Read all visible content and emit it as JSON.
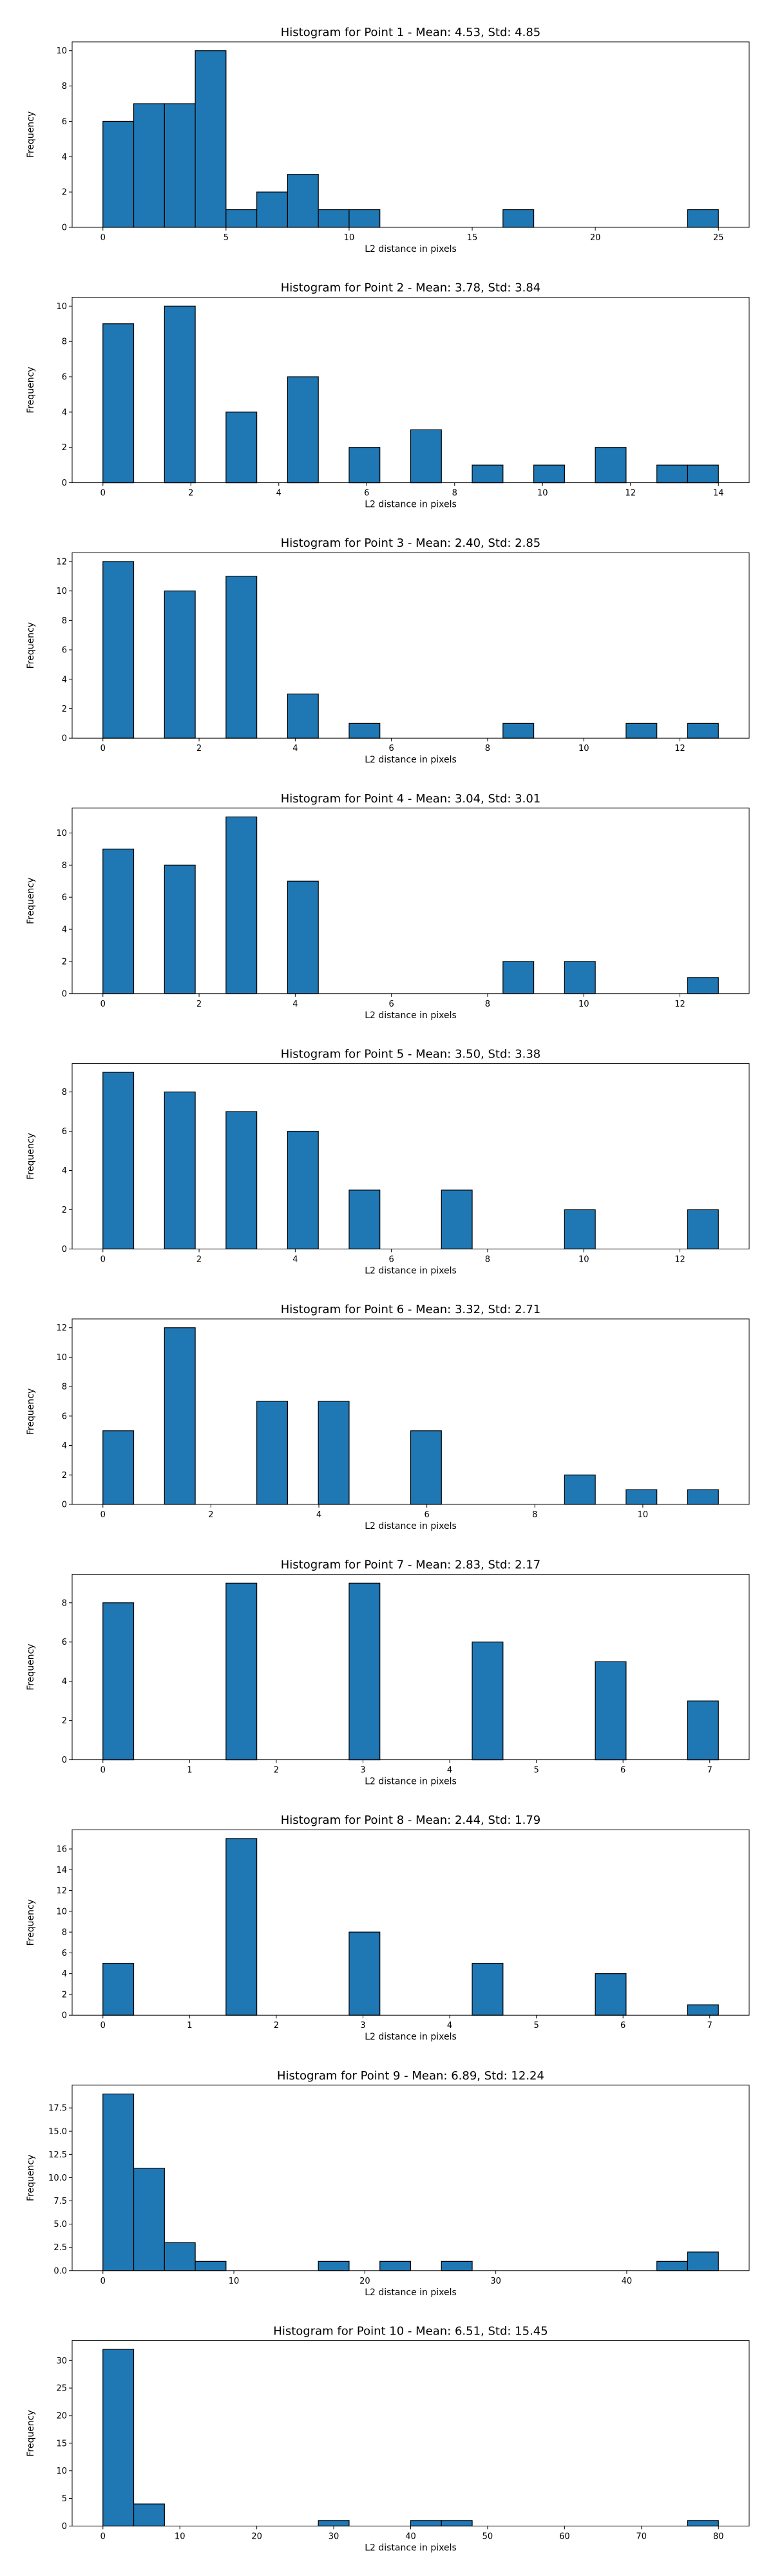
{
  "figure": {
    "background": "#ffffff",
    "bar_color": "#1f77b4",
    "edge_color": "#000000"
  },
  "chart_data": [
    {
      "type": "bar",
      "title": "Histogram for Point 1 - Mean: 4.53, Std: 4.85",
      "xlabel": "L2 distance in pixels",
      "ylabel": "Frequency",
      "xlim": [
        -1.25,
        26.25
      ],
      "ylim": [
        0,
        10.5
      ],
      "xticks": [
        0,
        5,
        10,
        15,
        20,
        25
      ],
      "xtick_labels": [
        "0",
        "5",
        "10",
        "15",
        "20",
        "25"
      ],
      "yticks": [
        0,
        2,
        4,
        6,
        8,
        10
      ],
      "ytick_labels": [
        "0",
        "2",
        "4",
        "6",
        "8",
        "10"
      ],
      "bin_edges": [
        0.0,
        1.25,
        2.5,
        3.75,
        5.0,
        6.25,
        7.5,
        8.75,
        10.0,
        11.25,
        12.5,
        13.75,
        15.0,
        16.25,
        17.5,
        18.75,
        20.0,
        21.25,
        22.5,
        23.75,
        25.0
      ],
      "values": [
        6,
        7,
        7,
        10,
        1,
        2,
        3,
        1,
        1,
        0,
        0,
        0,
        0,
        1,
        0,
        0,
        0,
        0,
        0,
        1
      ]
    },
    {
      "type": "bar",
      "title": "Histogram for Point 2 - Mean: 3.78, Std: 3.84",
      "xlabel": "L2 distance in pixels",
      "ylabel": "Frequency",
      "xlim": [
        -0.7,
        14.7
      ],
      "ylim": [
        0,
        10.5
      ],
      "xticks": [
        0,
        2,
        4,
        6,
        8,
        10,
        12,
        14
      ],
      "xtick_labels": [
        "0",
        "2",
        "4",
        "6",
        "8",
        "10",
        "12",
        "14"
      ],
      "yticks": [
        0,
        2,
        4,
        6,
        8,
        10
      ],
      "ytick_labels": [
        "0",
        "2",
        "4",
        "6",
        "8",
        "10"
      ],
      "bin_edges": [
        0.0,
        0.7,
        1.4,
        2.1,
        2.8,
        3.5,
        4.2,
        4.9,
        5.6,
        6.3,
        7.0,
        7.7,
        8.4,
        9.1,
        9.8,
        10.5,
        11.2,
        11.9,
        12.6,
        13.3,
        14.0
      ],
      "values": [
        9,
        0,
        10,
        0,
        4,
        0,
        6,
        0,
        2,
        0,
        3,
        0,
        1,
        0,
        1,
        0,
        2,
        0,
        1,
        1
      ]
    },
    {
      "type": "bar",
      "title": "Histogram for Point 3 - Mean: 2.40, Std: 2.85",
      "xlabel": "L2 distance in pixels",
      "ylabel": "Frequency",
      "xlim": [
        -0.64,
        13.44
      ],
      "ylim": [
        0,
        12.6
      ],
      "xticks": [
        0,
        2,
        4,
        6,
        8,
        10,
        12
      ],
      "xtick_labels": [
        "0",
        "2",
        "4",
        "6",
        "8",
        "10",
        "12"
      ],
      "yticks": [
        0,
        2,
        4,
        6,
        8,
        10,
        12
      ],
      "ytick_labels": [
        "0",
        "2",
        "4",
        "6",
        "8",
        "10",
        "12"
      ],
      "bin_edges": [
        0.0,
        0.64,
        1.28,
        1.92,
        2.56,
        3.2,
        3.84,
        4.48,
        5.12,
        5.76,
        6.4,
        7.04,
        7.68,
        8.32,
        8.96,
        9.6,
        10.24,
        10.88,
        11.52,
        12.16,
        12.8
      ],
      "values": [
        12,
        0,
        10,
        0,
        11,
        0,
        3,
        0,
        1,
        0,
        0,
        0,
        0,
        1,
        0,
        0,
        0,
        1,
        0,
        1
      ]
    },
    {
      "type": "bar",
      "title": "Histogram for Point 4 - Mean: 3.04, Std: 3.01",
      "xlabel": "L2 distance in pixels",
      "ylabel": "Frequency",
      "xlim": [
        -0.64,
        13.44
      ],
      "ylim": [
        0,
        11.55
      ],
      "xticks": [
        0,
        2,
        4,
        6,
        8,
        10,
        12
      ],
      "xtick_labels": [
        "0",
        "2",
        "4",
        "6",
        "8",
        "10",
        "12"
      ],
      "yticks": [
        0,
        2,
        4,
        6,
        8,
        10
      ],
      "ytick_labels": [
        "0",
        "2",
        "4",
        "6",
        "8",
        "10"
      ],
      "bin_edges": [
        0.0,
        0.64,
        1.28,
        1.92,
        2.56,
        3.2,
        3.84,
        4.48,
        5.12,
        5.76,
        6.4,
        7.04,
        7.68,
        8.32,
        8.96,
        9.6,
        10.24,
        10.88,
        11.52,
        12.16,
        12.8
      ],
      "values": [
        9,
        0,
        8,
        0,
        11,
        0,
        7,
        0,
        0,
        0,
        0,
        0,
        0,
        2,
        0,
        2,
        0,
        0,
        0,
        1
      ]
    },
    {
      "type": "bar",
      "title": "Histogram for Point 5 - Mean: 3.50, Std: 3.38",
      "xlabel": "L2 distance in pixels",
      "ylabel": "Frequency",
      "xlim": [
        -0.64,
        13.44
      ],
      "ylim": [
        0,
        9.45
      ],
      "xticks": [
        0,
        2,
        4,
        6,
        8,
        10,
        12
      ],
      "xtick_labels": [
        "0",
        "2",
        "4",
        "6",
        "8",
        "10",
        "12"
      ],
      "yticks": [
        0,
        2,
        4,
        6,
        8
      ],
      "ytick_labels": [
        "0",
        "2",
        "4",
        "6",
        "8"
      ],
      "bin_edges": [
        0.0,
        0.64,
        1.28,
        1.92,
        2.56,
        3.2,
        3.84,
        4.48,
        5.12,
        5.76,
        6.4,
        7.04,
        7.68,
        8.32,
        8.96,
        9.6,
        10.24,
        10.88,
        11.52,
        12.16,
        12.8
      ],
      "values": [
        9,
        0,
        8,
        0,
        7,
        0,
        6,
        0,
        3,
        0,
        0,
        3,
        0,
        0,
        0,
        2,
        0,
        0,
        0,
        2
      ]
    },
    {
      "type": "bar",
      "title": "Histogram for Point 6 - Mean: 3.32, Std: 2.71",
      "xlabel": "L2 distance in pixels",
      "ylabel": "Frequency",
      "xlim": [
        -0.57,
        11.97
      ],
      "ylim": [
        0,
        12.6
      ],
      "xticks": [
        0,
        2,
        4,
        6,
        8,
        10
      ],
      "xtick_labels": [
        "0",
        "2",
        "4",
        "6",
        "8",
        "10"
      ],
      "yticks": [
        0,
        2,
        4,
        6,
        8,
        10,
        12
      ],
      "ytick_labels": [
        "0",
        "2",
        "4",
        "6",
        "8",
        "10",
        "12"
      ],
      "bin_edges": [
        0.0,
        0.57,
        1.14,
        1.71,
        2.28,
        2.85,
        3.42,
        3.99,
        4.56,
        5.13,
        5.7,
        6.27,
        6.84,
        7.41,
        7.98,
        8.55,
        9.12,
        9.69,
        10.26,
        10.83,
        11.4
      ],
      "values": [
        5,
        0,
        12,
        0,
        0,
        7,
        0,
        7,
        0,
        0,
        5,
        0,
        0,
        0,
        0,
        2,
        0,
        1,
        0,
        1
      ]
    },
    {
      "type": "bar",
      "title": "Histogram for Point 7 - Mean: 2.83, Std: 2.17",
      "xlabel": "L2 distance in pixels",
      "ylabel": "Frequency",
      "xlim": [
        -0.355,
        7.455
      ],
      "ylim": [
        0,
        9.45
      ],
      "xticks": [
        0,
        1,
        2,
        3,
        4,
        5,
        6,
        7
      ],
      "xtick_labels": [
        "0",
        "1",
        "2",
        "3",
        "4",
        "5",
        "6",
        "7"
      ],
      "yticks": [
        0,
        2,
        4,
        6,
        8
      ],
      "ytick_labels": [
        "0",
        "2",
        "4",
        "6",
        "8"
      ],
      "bin_edges": [
        0.0,
        0.355,
        0.71,
        1.065,
        1.42,
        1.775,
        2.13,
        2.485,
        2.84,
        3.195,
        3.55,
        3.905,
        4.26,
        4.615,
        4.97,
        5.325,
        5.68,
        6.035,
        6.39,
        6.745,
        7.1
      ],
      "values": [
        8,
        0,
        0,
        0,
        9,
        0,
        0,
        0,
        9,
        0,
        0,
        0,
        6,
        0,
        0,
        0,
        5,
        0,
        0,
        3
      ]
    },
    {
      "type": "bar",
      "title": "Histogram for Point 8 - Mean: 2.44, Std: 1.79",
      "xlabel": "L2 distance in pixels",
      "ylabel": "Frequency",
      "xlim": [
        -0.355,
        7.455
      ],
      "ylim": [
        0,
        17.85
      ],
      "xticks": [
        0,
        1,
        2,
        3,
        4,
        5,
        6,
        7
      ],
      "xtick_labels": [
        "0",
        "1",
        "2",
        "3",
        "4",
        "5",
        "6",
        "7"
      ],
      "yticks": [
        0,
        2,
        4,
        6,
        8,
        10,
        12,
        14,
        16
      ],
      "ytick_labels": [
        "0",
        "2",
        "4",
        "6",
        "8",
        "10",
        "12",
        "14",
        "16"
      ],
      "bin_edges": [
        0.0,
        0.355,
        0.71,
        1.065,
        1.42,
        1.775,
        2.13,
        2.485,
        2.84,
        3.195,
        3.55,
        3.905,
        4.26,
        4.615,
        4.97,
        5.325,
        5.68,
        6.035,
        6.39,
        6.745,
        7.1
      ],
      "values": [
        5,
        0,
        0,
        0,
        17,
        0,
        0,
        0,
        8,
        0,
        0,
        0,
        5,
        0,
        0,
        0,
        4,
        0,
        0,
        1
      ]
    },
    {
      "type": "bar",
      "title": "Histogram for Point 9 - Mean: 6.89, Std: 12.24",
      "xlabel": "L2 distance in pixels",
      "ylabel": "Frequency",
      "xlim": [
        -2.35,
        49.35
      ],
      "ylim": [
        0,
        19.95
      ],
      "xticks": [
        0,
        10,
        20,
        30,
        40
      ],
      "xtick_labels": [
        "0",
        "10",
        "20",
        "30",
        "40"
      ],
      "yticks": [
        0,
        2.5,
        5,
        7.5,
        10,
        12.5,
        15,
        17.5
      ],
      "ytick_labels": [
        "0.0",
        "2.5",
        "5.0",
        "7.5",
        "10.0",
        "12.5",
        "15.0",
        "17.5"
      ],
      "bin_edges": [
        0.0,
        2.35,
        4.7,
        7.05,
        9.4,
        11.75,
        14.1,
        16.45,
        18.8,
        21.15,
        23.5,
        25.85,
        28.2,
        30.55,
        32.9,
        35.25,
        37.6,
        39.95,
        42.3,
        44.65,
        47.0
      ],
      "values": [
        19,
        11,
        3,
        1,
        0,
        0,
        0,
        1,
        0,
        1,
        0,
        1,
        0,
        0,
        0,
        0,
        0,
        0,
        1,
        2
      ]
    },
    {
      "type": "bar",
      "title": "Histogram for Point 10 - Mean: 6.51, Std: 15.45",
      "xlabel": "L2 distance in pixels",
      "ylabel": "Frequency",
      "xlim": [
        -4.0,
        84.0
      ],
      "ylim": [
        0,
        33.6
      ],
      "xticks": [
        0,
        10,
        20,
        30,
        40,
        50,
        60,
        70,
        80
      ],
      "xtick_labels": [
        "0",
        "10",
        "20",
        "30",
        "40",
        "50",
        "60",
        "70",
        "80"
      ],
      "yticks": [
        0,
        5,
        10,
        15,
        20,
        25,
        30
      ],
      "ytick_labels": [
        "0",
        "5",
        "10",
        "15",
        "20",
        "25",
        "30"
      ],
      "bin_edges": [
        0.0,
        4.0,
        8.0,
        12.0,
        16.0,
        20.0,
        24.0,
        28.0,
        32.0,
        36.0,
        40.0,
        44.0,
        48.0,
        52.0,
        56.0,
        60.0,
        64.0,
        68.0,
        72.0,
        76.0,
        80.0
      ],
      "values": [
        32,
        4,
        0,
        0,
        0,
        0,
        0,
        1,
        0,
        0,
        1,
        1,
        0,
        0,
        0,
        0,
        0,
        0,
        0,
        1
      ]
    }
  ]
}
